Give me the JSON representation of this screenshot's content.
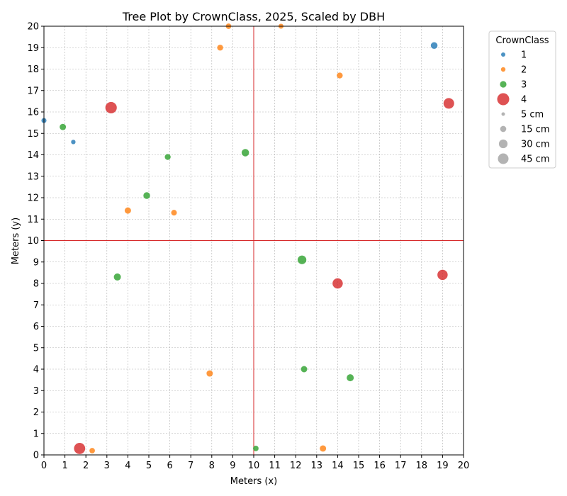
{
  "chart_data": {
    "type": "scatter",
    "title": "Tree Plot by CrownClass, 2025, Scaled by DBH",
    "xlabel": "Meters (x)",
    "ylabel": "Meters (y)",
    "xlim": [
      0,
      20
    ],
    "ylim": [
      0,
      20
    ],
    "xticks": [
      "0",
      "1",
      "2",
      "3",
      "4",
      "5",
      "6",
      "7",
      "8",
      "9",
      "10",
      "11",
      "12",
      "13",
      "14",
      "15",
      "16",
      "17",
      "18",
      "19",
      "20"
    ],
    "yticks": [
      "0",
      "1",
      "2",
      "3",
      "4",
      "5",
      "6",
      "7",
      "8",
      "9",
      "10",
      "11",
      "12",
      "13",
      "14",
      "15",
      "16",
      "17",
      "18",
      "19",
      "20"
    ],
    "grid": true,
    "reference_lines": {
      "x": 10,
      "y": 10,
      "color": "#d62728"
    },
    "legend": {
      "title": "CrownClass",
      "placement": "outside-top-right",
      "class_entries": [
        {
          "label": "1",
          "color": "#1f77b4"
        },
        {
          "label": "2",
          "color": "#ff7f0e"
        },
        {
          "label": "3",
          "color": "#2ca02c"
        },
        {
          "label": "4",
          "color": "#d62728"
        }
      ],
      "size_entries": [
        {
          "label": "5 cm",
          "dbh": 5
        },
        {
          "label": "15 cm",
          "dbh": 15
        },
        {
          "label": "30 cm",
          "dbh": 30
        },
        {
          "label": "45 cm",
          "dbh": 45
        }
      ],
      "size_color": "#999999"
    },
    "series": [
      {
        "name": "1",
        "color": "#1f77b4",
        "points": [
          {
            "x": 0.0,
            "y": 15.6,
            "dbh": 10
          },
          {
            "x": 1.4,
            "y": 14.6,
            "dbh": 8
          },
          {
            "x": 18.6,
            "y": 19.1,
            "dbh": 18
          }
        ]
      },
      {
        "name": "2",
        "color": "#ff7f0e",
        "points": [
          {
            "x": 8.8,
            "y": 20.0,
            "dbh": 12
          },
          {
            "x": 11.3,
            "y": 20.0,
            "dbh": 10
          },
          {
            "x": 8.4,
            "y": 19.0,
            "dbh": 14
          },
          {
            "x": 14.1,
            "y": 17.7,
            "dbh": 14
          },
          {
            "x": 4.0,
            "y": 11.4,
            "dbh": 16
          },
          {
            "x": 6.2,
            "y": 11.3,
            "dbh": 13
          },
          {
            "x": 7.9,
            "y": 3.8,
            "dbh": 16
          },
          {
            "x": 2.3,
            "y": 0.2,
            "dbh": 12
          },
          {
            "x": 13.3,
            "y": 0.3,
            "dbh": 16
          }
        ]
      },
      {
        "name": "3",
        "color": "#2ca02c",
        "points": [
          {
            "x": 0.9,
            "y": 15.3,
            "dbh": 16
          },
          {
            "x": 5.9,
            "y": 13.9,
            "dbh": 14
          },
          {
            "x": 9.6,
            "y": 14.1,
            "dbh": 22
          },
          {
            "x": 4.9,
            "y": 12.1,
            "dbh": 18
          },
          {
            "x": 3.5,
            "y": 8.3,
            "dbh": 20
          },
          {
            "x": 12.3,
            "y": 9.1,
            "dbh": 30
          },
          {
            "x": 12.4,
            "y": 4.0,
            "dbh": 16
          },
          {
            "x": 14.6,
            "y": 3.6,
            "dbh": 20
          },
          {
            "x": 10.1,
            "y": 0.3,
            "dbh": 12
          }
        ]
      },
      {
        "name": "4",
        "color": "#d62728",
        "points": [
          {
            "x": 3.2,
            "y": 16.2,
            "dbh": 52
          },
          {
            "x": 19.3,
            "y": 16.4,
            "dbh": 45
          },
          {
            "x": 14.0,
            "y": 8.0,
            "dbh": 42
          },
          {
            "x": 19.0,
            "y": 8.4,
            "dbh": 42
          },
          {
            "x": 1.7,
            "y": 0.3,
            "dbh": 50
          }
        ]
      }
    ]
  }
}
